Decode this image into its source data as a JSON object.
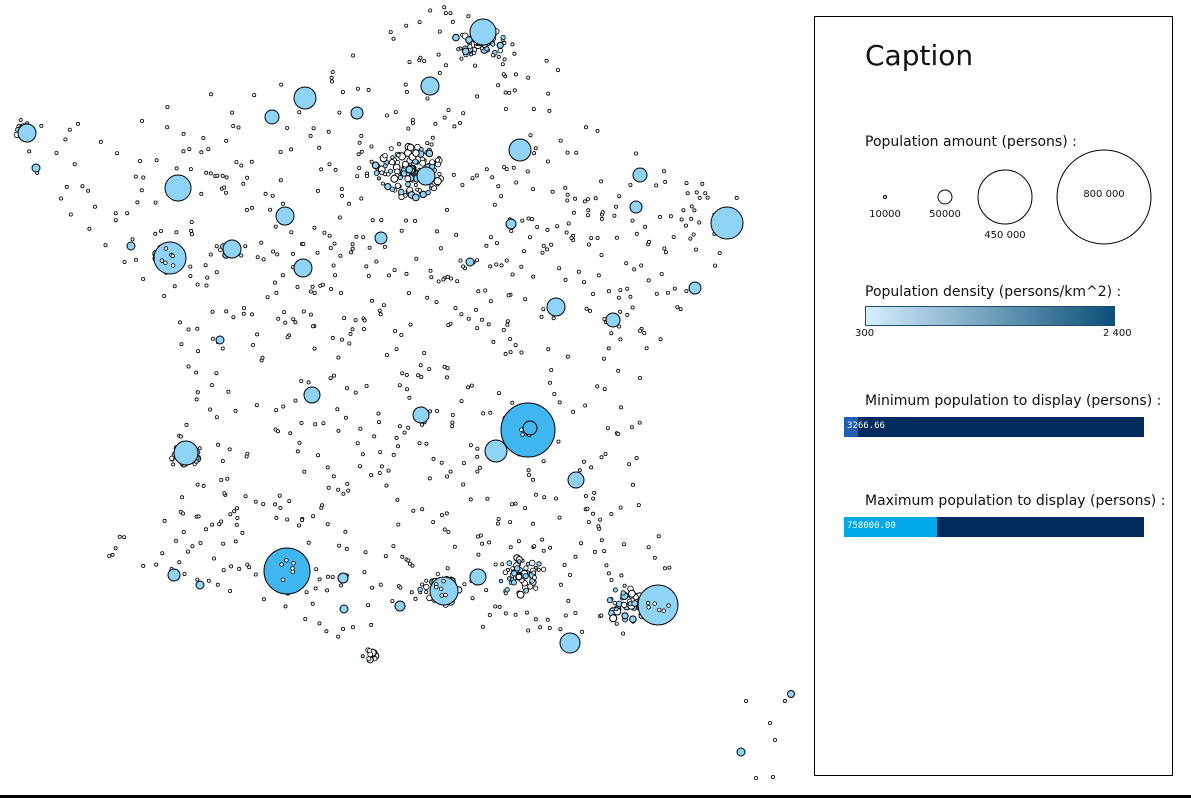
{
  "caption": {
    "title": "Caption",
    "amount": {
      "label": "Population amount (persons) :",
      "examples": [
        {
          "value": 10000,
          "text": "10000"
        },
        {
          "value": 50000,
          "text": "50000"
        },
        {
          "value": 450000,
          "text": "450 000"
        },
        {
          "value": 800000,
          "text": "800 000"
        }
      ]
    },
    "density": {
      "label": "Population density (persons/km^2) :",
      "min_text": "300",
      "max_text": "2 400",
      "color_low": "#d6efff",
      "color_high": "#0b4f78"
    },
    "min_population": {
      "label": "Minimum population to display (persons) :",
      "value_text": "3266.66",
      "fill_fraction": 0.045,
      "fill_color": "#1f5fb0"
    },
    "max_population": {
      "label": "Maximum population to display (persons) :",
      "value_text": "758000.00",
      "fill_fraction": 0.31,
      "fill_color": "#00a8e8"
    }
  },
  "colors": {
    "city_fill": "#8fd3f8",
    "city_fill_dense": "#3fb6ef",
    "outline": "#000000",
    "track": "#002b5c"
  },
  "icons": {
    "city": "circle-marker-icon"
  }
}
